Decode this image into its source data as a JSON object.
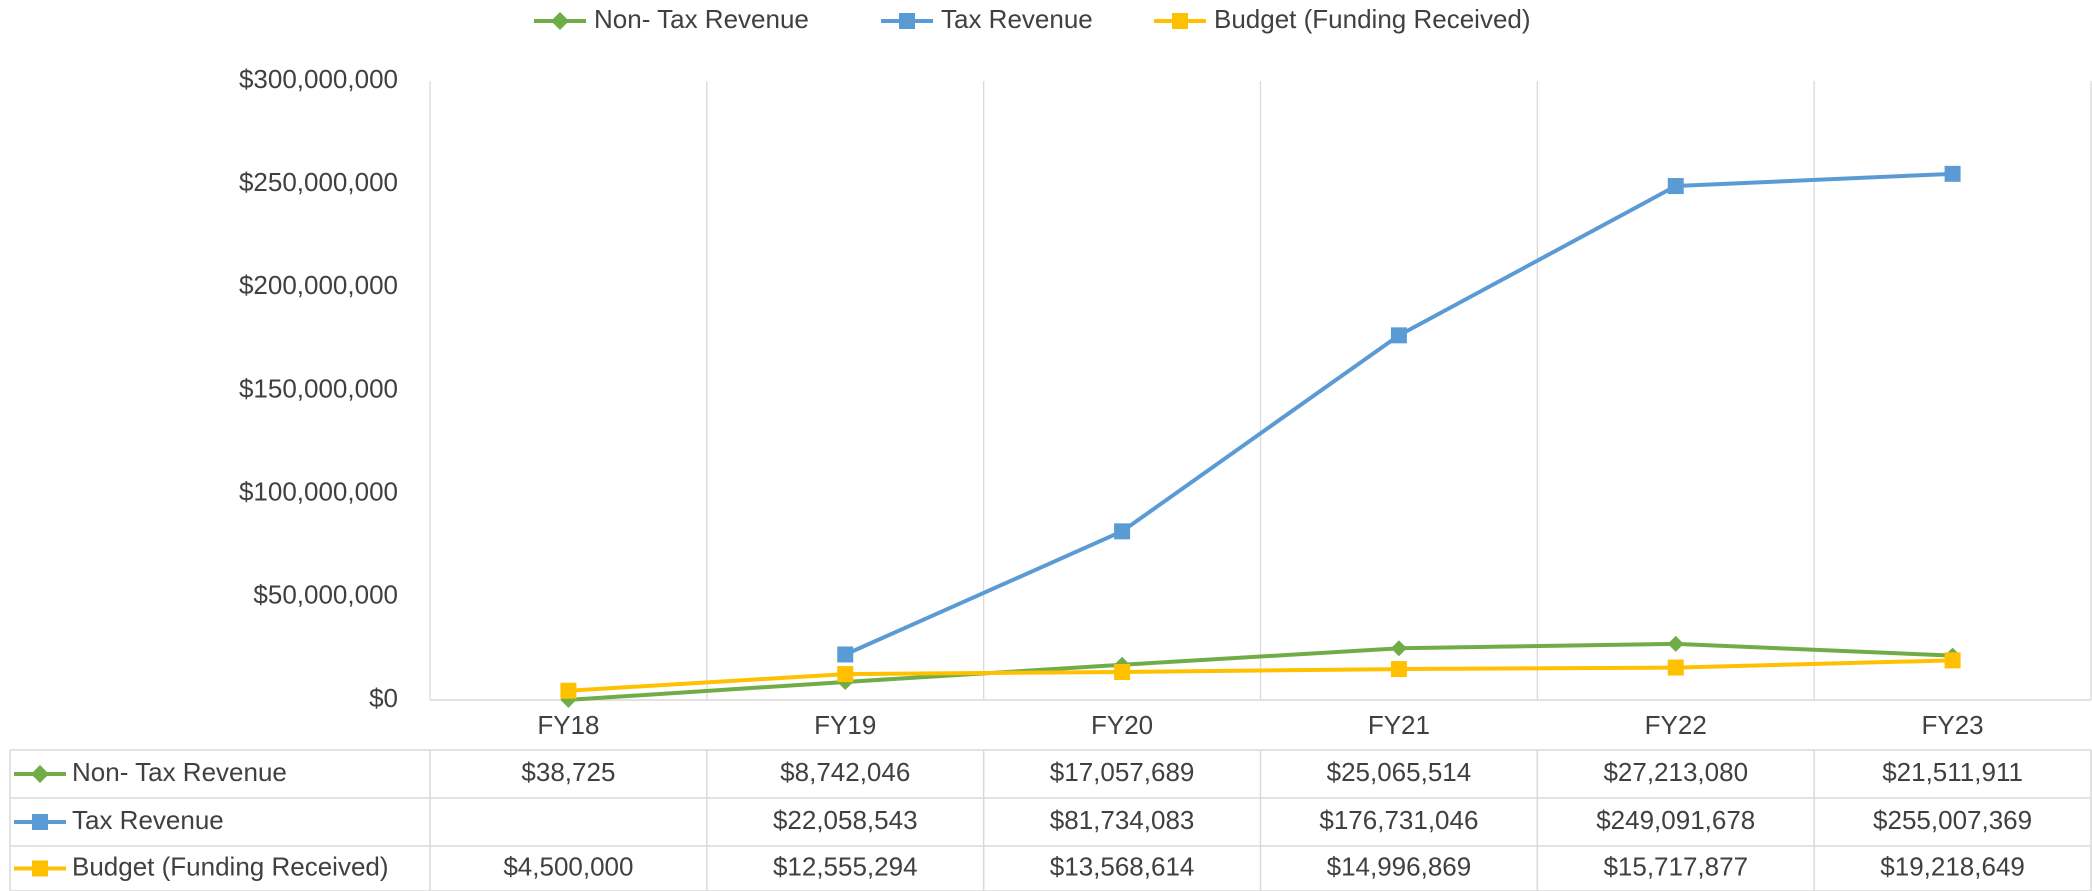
{
  "chart_data": {
    "type": "line",
    "categories": [
      "FY18",
      "FY19",
      "FY20",
      "FY21",
      "FY22",
      "FY23"
    ],
    "series": [
      {
        "name": "Non- Tax Revenue",
        "color": "#70ad47",
        "marker": "diamond",
        "values": [
          38725,
          8742046,
          17057689,
          25065514,
          27213080,
          21511911
        ],
        "value_labels": [
          "$38,725",
          "$8,742,046",
          "$17,057,689",
          "$25,065,514",
          "$27,213,080",
          "$21,511,911"
        ]
      },
      {
        "name": "Tax Revenue",
        "color": "#5b9bd5",
        "marker": "square",
        "values": [
          null,
          22058543,
          81734083,
          176731046,
          249091678,
          255007369
        ],
        "value_labels": [
          null,
          "$22,058,543",
          "$81,734,083",
          "$176,731,046",
          "$249,091,678",
          "$255,007,369"
        ]
      },
      {
        "name": "Budget (Funding Received)",
        "color": "#ffc000",
        "marker": "square",
        "values": [
          4500000,
          12555294,
          13568614,
          14996869,
          15717877,
          19218649
        ],
        "value_labels": [
          "$4,500,000",
          "$12,555,294",
          "$13,568,614",
          "$14,996,869",
          "$15,717,877",
          "$19,218,649"
        ]
      }
    ],
    "ylim": [
      0,
      300000000
    ],
    "yticks": [
      {
        "value": 0,
        "label": "$0"
      },
      {
        "value": 50000000,
        "label": "$50,000,000"
      },
      {
        "value": 100000000,
        "label": "$100,000,000"
      },
      {
        "value": 150000000,
        "label": "$150,000,000"
      },
      {
        "value": 200000000,
        "label": "$200,000,000"
      },
      {
        "value": 250000000,
        "label": "$250,000,000"
      },
      {
        "value": 300000000,
        "label": "$300,000,000"
      }
    ],
    "grid": true,
    "legend": "top",
    "data_table": true
  }
}
